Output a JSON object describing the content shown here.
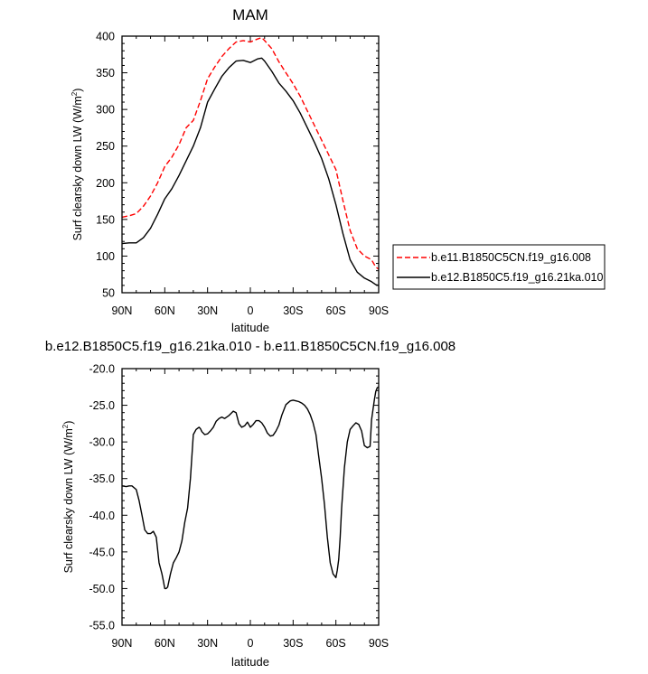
{
  "chart_data": [
    {
      "type": "line",
      "title": "MAM",
      "xlabel": "latitude",
      "ylabel_main": "Surf clearsky down LW (W/m",
      "ylabel_sup": "2",
      "ylabel_tail": ")",
      "xlim": [
        90,
        -90
      ],
      "ylim": [
        50,
        400
      ],
      "x_ticks": [
        90,
        60,
        30,
        0,
        -30,
        -60,
        -90
      ],
      "x_tick_labels": [
        "90N",
        "60N",
        "30N",
        "0",
        "30S",
        "60S",
        "90S"
      ],
      "y_ticks": [
        50,
        100,
        150,
        200,
        250,
        300,
        350,
        400
      ],
      "y_tick_labels": [
        "50",
        "100",
        "150",
        "200",
        "250",
        "300",
        "350",
        "400"
      ],
      "series": [
        {
          "name": "b.e11.B1850C5CN.f19_g16.008",
          "color": "#ff0000",
          "dash": "dashed",
          "x": [
            90,
            85,
            80,
            75,
            70,
            65,
            60,
            55,
            50,
            45,
            40,
            35,
            30,
            25,
            20,
            15,
            10,
            5,
            0,
            -5,
            -8,
            -10,
            -15,
            -20,
            -25,
            -30,
            -35,
            -40,
            -45,
            -50,
            -55,
            -60,
            -65,
            -70,
            -75,
            -80,
            -85,
            -88,
            -90
          ],
          "y": [
            153,
            155,
            158,
            168,
            182,
            200,
            222,
            235,
            252,
            275,
            285,
            312,
            342,
            358,
            372,
            383,
            392,
            394,
            392,
            396,
            398,
            394,
            383,
            365,
            350,
            335,
            318,
            298,
            278,
            258,
            238,
            218,
            175,
            135,
            110,
            100,
            95,
            85,
            82
          ]
        },
        {
          "name": "b.e12.B1850C5.f19_g16.21ka.010",
          "color": "#000000",
          "dash": "solid",
          "x": [
            90,
            85,
            80,
            75,
            70,
            65,
            60,
            55,
            50,
            45,
            40,
            35,
            30,
            25,
            20,
            15,
            10,
            5,
            0,
            -5,
            -8,
            -10,
            -15,
            -20,
            -25,
            -30,
            -35,
            -40,
            -45,
            -50,
            -55,
            -60,
            -65,
            -70,
            -75,
            -80,
            -85,
            -88,
            -90
          ],
          "y": [
            117,
            118,
            118,
            125,
            138,
            157,
            178,
            192,
            210,
            230,
            250,
            275,
            310,
            328,
            345,
            357,
            366,
            367,
            364,
            369,
            370,
            366,
            352,
            336,
            325,
            312,
            295,
            275,
            255,
            233,
            205,
            170,
            130,
            95,
            78,
            70,
            65,
            61,
            60
          ]
        }
      ],
      "legend": [
        "b.e11.B1850C5CN.f19_g16.008",
        "b.e12.B1850C5.f19_g16.21ka.010"
      ],
      "legend_position": "right"
    },
    {
      "type": "line",
      "title": "b.e12.B1850C5.f19_g16.21ka.010 - b.e11.B1850C5CN.f19_g16.008",
      "xlabel": "latitude",
      "ylabel_main": "Surf clearsky down LW (W/m",
      "ylabel_sup": "2",
      "ylabel_tail": ")",
      "xlim": [
        90,
        -90
      ],
      "ylim": [
        -55,
        -20
      ],
      "x_ticks": [
        90,
        60,
        30,
        0,
        -30,
        -60,
        -90
      ],
      "x_tick_labels": [
        "90N",
        "60N",
        "30N",
        "0",
        "30S",
        "60S",
        "90S"
      ],
      "y_ticks": [
        -55,
        -50,
        -45,
        -40,
        -35,
        -30,
        -25,
        -20
      ],
      "y_tick_labels": [
        "-55.0",
        "-50.0",
        "-45.0",
        "-40.0",
        "-35.0",
        "-30.0",
        "-25.0",
        "-20.0"
      ],
      "series": [
        {
          "color": "#000000",
          "dash": "solid",
          "x": [
            90,
            87,
            85,
            83,
            80,
            78,
            76,
            74,
            72,
            70,
            68,
            66,
            64,
            62,
            61,
            60,
            59,
            58,
            56,
            54,
            52,
            50,
            48,
            46,
            44,
            42,
            40,
            38,
            36,
            35,
            34,
            32,
            30,
            28,
            26,
            24,
            22,
            20,
            18,
            15,
            12,
            10,
            8,
            6,
            4,
            2,
            0,
            -2,
            -4,
            -6,
            -8,
            -10,
            -12,
            -14,
            -16,
            -18,
            -20,
            -22,
            -25,
            -28,
            -30,
            -32,
            -34,
            -36,
            -38,
            -40,
            -42,
            -44,
            -46,
            -48,
            -50,
            -52,
            -54,
            -56,
            -58,
            -60,
            -61,
            -62,
            -63,
            -64,
            -66,
            -68,
            -70,
            -72,
            -74,
            -76,
            -78,
            -80,
            -82,
            -84,
            -85,
            -86,
            -87,
            -88,
            -89,
            -90
          ],
          "y": [
            -36.0,
            -36.1,
            -36.0,
            -36.0,
            -36.5,
            -38.0,
            -40.0,
            -42.0,
            -42.5,
            -42.5,
            -42.2,
            -43.0,
            -46.5,
            -48.0,
            -49.0,
            -50.0,
            -50.0,
            -49.8,
            -48.0,
            -46.5,
            -45.8,
            -45.0,
            -43.5,
            -41.0,
            -39.0,
            -35.0,
            -29.0,
            -28.3,
            -28.0,
            -28.2,
            -28.6,
            -29.0,
            -28.9,
            -28.5,
            -28.0,
            -27.2,
            -26.8,
            -26.6,
            -26.8,
            -26.4,
            -25.8,
            -26.0,
            -27.5,
            -28.0,
            -27.8,
            -27.3,
            -28.0,
            -27.6,
            -27.1,
            -27.1,
            -27.4,
            -28.0,
            -28.8,
            -29.2,
            -29.1,
            -28.5,
            -27.7,
            -26.4,
            -24.9,
            -24.4,
            -24.3,
            -24.4,
            -24.5,
            -24.7,
            -25.0,
            -25.5,
            -26.3,
            -27.4,
            -29.0,
            -32.0,
            -35.0,
            -38.5,
            -43.0,
            -46.5,
            -48.0,
            -48.5,
            -47.5,
            -46.0,
            -43.0,
            -39.0,
            -33.5,
            -30.0,
            -28.3,
            -27.8,
            -27.4,
            -27.6,
            -28.5,
            -30.5,
            -30.8,
            -30.6,
            -27.0,
            -25.6,
            -24.2,
            -23.1,
            -22.6,
            -22.5
          ]
        }
      ]
    }
  ]
}
